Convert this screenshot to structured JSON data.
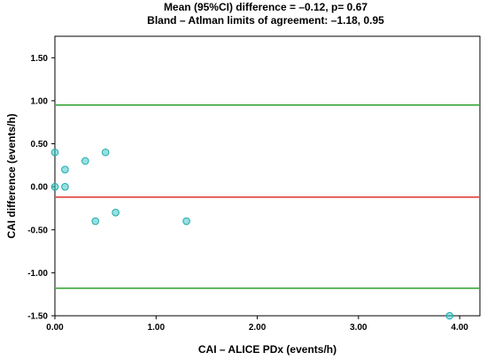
{
  "chart_data": {
    "type": "scatter",
    "title_lines": [
      "Mean (95%CI) difference = –0.12, p= 0.67",
      "Bland – Atlman limits of agreement: –1.18, 0.95"
    ],
    "xlabel": "CAI – ALICE PDx (events/h)",
    "ylabel": "CAI difference (events/h)",
    "xlim": [
      0,
      4.2
    ],
    "ylim": [
      -1.5,
      1.75
    ],
    "x_ticks": [
      0,
      1,
      2,
      3,
      4
    ],
    "x_tick_labels": [
      "0.00",
      "1.00",
      "2.00",
      "3.00",
      "4.00"
    ],
    "y_ticks": [
      1.5,
      1.0,
      0.5,
      0.0,
      -0.5,
      -1.0,
      -1.5
    ],
    "y_tick_labels": [
      "1.50",
      "1.00",
      "0.50",
      "0.00",
      "-0.50",
      "-1.00",
      "-1.50"
    ],
    "points": {
      "x": [
        0.0,
        0.0,
        0.1,
        0.1,
        0.3,
        0.5,
        0.4,
        0.6,
        1.3,
        3.9
      ],
      "y": [
        0.4,
        0.0,
        0.2,
        0.0,
        0.3,
        0.4,
        -0.4,
        -0.3,
        -0.4,
        -1.5
      ]
    },
    "reference_lines": [
      {
        "y": 0.95,
        "color": "#2ca02c"
      },
      {
        "y": -0.12,
        "color": "#e0302c"
      },
      {
        "y": -1.18,
        "color": "#2ca02c"
      }
    ],
    "point_color": "#40c8c8",
    "grid": false,
    "legend": "none"
  }
}
